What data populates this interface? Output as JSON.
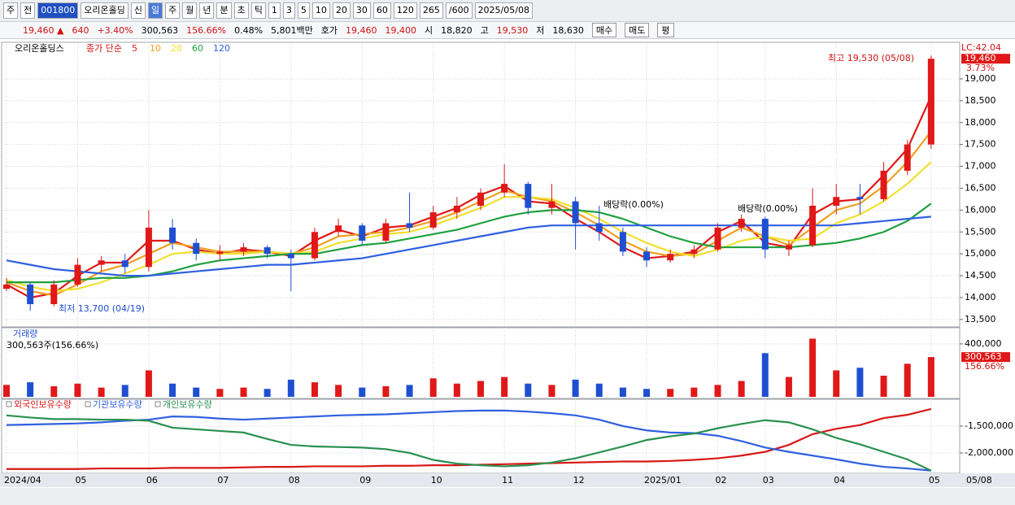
{
  "toolbar": [
    "주",
    "전",
    "001800",
    "오리온홀딩",
    "신",
    "일",
    "주",
    "월",
    "년",
    "분",
    "초",
    "틱",
    "1",
    "3",
    "5",
    "10",
    "20",
    "30",
    "60",
    "120",
    "265",
    "/600",
    "2025/05/08"
  ],
  "info_bar": [
    {
      "text": "19,460 ▲",
      "color": "#d01010"
    },
    {
      "text": "640",
      "color": "#d01010"
    },
    {
      "text": "+3.40%",
      "color": "#d01010"
    },
    {
      "text": "300,563",
      "color": "#000000"
    },
    {
      "text": "156.66%",
      "color": "#d01010"
    },
    {
      "text": "0.48%",
      "color": "#000000"
    },
    {
      "text": "5,801백만",
      "color": "#000000"
    },
    {
      "text": "호가",
      "color": "#000000"
    },
    {
      "text": "19,460",
      "color": "#d01010"
    },
    {
      "text": "19,400",
      "color": "#d01010"
    },
    {
      "text": "시",
      "color": "#000000"
    },
    {
      "text": "18,820",
      "color": "#000000"
    },
    {
      "text": "고",
      "color": "#000000"
    },
    {
      "text": "19,530",
      "color": "#d01010"
    },
    {
      "text": "저",
      "color": "#000000"
    },
    {
      "text": "18,630",
      "color": "#000000"
    },
    {
      "text": "매수",
      "color": "#000000"
    },
    {
      "text": "매도",
      "color": "#000000"
    },
    {
      "text": "평",
      "color": "#000000"
    }
  ],
  "chart_data": [
    {
      "type": "candlestick",
      "title": "오리온홀딩스",
      "subtitle": "종가 단순",
      "categories": [
        "2024/04",
        null,
        null,
        "05",
        null,
        null,
        "06",
        null,
        null,
        "07",
        null,
        null,
        "08",
        null,
        null,
        "09",
        null,
        null,
        "10",
        null,
        null,
        "11",
        null,
        null,
        "12",
        null,
        null,
        "2025/01",
        null,
        null,
        "02",
        null,
        "03",
        null,
        null,
        "04",
        null,
        null,
        null,
        "05"
      ],
      "last_date_label": "05/08",
      "open": [
        14200,
        14300,
        13850,
        14300,
        14750,
        14850,
        14700,
        15600,
        15250,
        15000,
        15050,
        15150,
        15000,
        14900,
        15500,
        15650,
        15300,
        15700,
        15600,
        15950,
        16100,
        16400,
        16600,
        16050,
        16200,
        15700,
        15500,
        15050,
        14850,
        15000,
        15100,
        15600,
        15800,
        15100,
        15200,
        16100,
        16300,
        16250,
        16900,
        17500
      ],
      "high": [
        14450,
        14350,
        14400,
        14900,
        14950,
        15000,
        16000,
        15800,
        15350,
        15200,
        15250,
        15200,
        15100,
        15600,
        15800,
        15700,
        15800,
        16400,
        16100,
        16300,
        16500,
        17050,
        16650,
        16600,
        16300,
        16100,
        15600,
        15150,
        15100,
        15200,
        15700,
        15900,
        15850,
        15300,
        16500,
        16600,
        16600,
        17100,
        17600,
        19530
      ],
      "low": [
        14150,
        13700,
        13800,
        14250,
        14600,
        14550,
        14600,
        15100,
        14850,
        14850,
        14950,
        14900,
        14150,
        14850,
        15400,
        15200,
        15250,
        15500,
        15550,
        15800,
        16000,
        16300,
        15900,
        15900,
        15100,
        15300,
        14950,
        14700,
        14800,
        14900,
        15050,
        15500,
        14900,
        14950,
        15150,
        15900,
        15900,
        16200,
        16800,
        17400
      ],
      "close": [
        14300,
        13850,
        14300,
        14750,
        14850,
        14700,
        15600,
        15250,
        15000,
        15050,
        15150,
        15000,
        14900,
        15500,
        15650,
        15300,
        15700,
        15600,
        15950,
        16100,
        16400,
        16600,
        16050,
        16200,
        15700,
        15500,
        15050,
        14850,
        15000,
        15100,
        15600,
        15800,
        15100,
        15200,
        16100,
        16300,
        16250,
        16900,
        17500,
        19460
      ],
      "up_color": "#e01818",
      "down_color": "#1f4fd1",
      "series": [
        {
          "name": "5",
          "color": "#e01818",
          "values": [
            14300,
            14000,
            14100,
            14500,
            14800,
            14800,
            15300,
            15300,
            15100,
            15000,
            15100,
            15050,
            14950,
            15300,
            15550,
            15400,
            15600,
            15650,
            15850,
            16050,
            16350,
            16550,
            16200,
            16150,
            15800,
            15500,
            15150,
            14900,
            14950,
            15050,
            15500,
            15750,
            15250,
            15150,
            15900,
            16200,
            16250,
            16800,
            17400,
            18600
          ]
        },
        {
          "name": "10",
          "color": "#f0a020",
          "values": [
            14350,
            14150,
            14050,
            14300,
            14600,
            14750,
            15000,
            15250,
            15150,
            15050,
            15050,
            15050,
            15000,
            15150,
            15400,
            15450,
            15500,
            15600,
            15750,
            15950,
            16200,
            16450,
            16300,
            16200,
            15950,
            15650,
            15300,
            15050,
            14950,
            15000,
            15300,
            15600,
            15400,
            15200,
            15600,
            16000,
            16150,
            16550,
            17100,
            17800
          ]
        },
        {
          "name": "20",
          "color": "#f0e030",
          "values": [
            14400,
            14250,
            14150,
            14200,
            14350,
            14550,
            14750,
            15000,
            15050,
            15000,
            15000,
            15050,
            15000,
            15050,
            15250,
            15350,
            15450,
            15500,
            15650,
            15850,
            16050,
            16300,
            16300,
            16250,
            16050,
            15800,
            15500,
            15250,
            15050,
            14950,
            15100,
            15300,
            15400,
            15300,
            15350,
            15700,
            15900,
            16200,
            16600,
            17100
          ]
        },
        {
          "name": "60",
          "color": "#20a040",
          "values": [
            14350,
            14350,
            14350,
            14400,
            14450,
            14450,
            14500,
            14600,
            14750,
            14850,
            14900,
            14950,
            15000,
            15000,
            15100,
            15200,
            15250,
            15350,
            15450,
            15550,
            15700,
            15850,
            15950,
            16000,
            16000,
            15950,
            15800,
            15600,
            15400,
            15250,
            15150,
            15150,
            15150,
            15150,
            15200,
            15250,
            15350,
            15500,
            15750,
            16150
          ]
        },
        {
          "name": "120",
          "color": "#3060e0",
          "values": [
            14850,
            14750,
            14650,
            14600,
            14550,
            14500,
            14500,
            14550,
            14600,
            14650,
            14700,
            14750,
            14750,
            14800,
            14850,
            14900,
            15000,
            15100,
            15200,
            15300,
            15400,
            15500,
            15600,
            15650,
            15650,
            15650,
            15650,
            15650,
            15650,
            15650,
            15650,
            15650,
            15650,
            15650,
            15650,
            15650,
            15700,
            15750,
            15800,
            15850
          ]
        }
      ],
      "ylim": [
        13330,
        19780
      ],
      "yticks": [
        {
          "value": 13500,
          "label": "13,500"
        },
        {
          "value": 14000,
          "label": "14,000"
        },
        {
          "value": 14500,
          "label": "14,500"
        },
        {
          "value": 15000,
          "label": "15,000"
        },
        {
          "value": 15500,
          "label": "15,500"
        },
        {
          "value": 16000,
          "label": "16,000"
        },
        {
          "value": 16500,
          "label": "16,500"
        },
        {
          "value": 17000,
          "label": "17,000"
        },
        {
          "value": 17500,
          "label": "17,500"
        },
        {
          "value": 18000,
          "label": "18,000"
        },
        {
          "value": 18500,
          "label": "18,500"
        },
        {
          "value": 19000,
          "label": "19,000"
        }
      ],
      "grid": true,
      "annotations": [
        "최고 19,530 (05/08)",
        "최저 13,700 (04/19)",
        "배당락(0.00%)",
        "배당락(0.00%)"
      ],
      "price_tag": "19,460",
      "change_tag": "3.73%",
      "lc_label": "LC:42.04"
    },
    {
      "type": "bar",
      "title": "거래량",
      "subtitle": "300,563주(156.66%)",
      "values": [
        90000,
        110000,
        80000,
        100000,
        70000,
        90000,
        200000,
        100000,
        70000,
        60000,
        70000,
        60000,
        130000,
        110000,
        90000,
        70000,
        80000,
        90000,
        140000,
        100000,
        120000,
        150000,
        100000,
        90000,
        130000,
        100000,
        70000,
        60000,
        60000,
        70000,
        90000,
        120000,
        330000,
        150000,
        440000,
        200000,
        220000,
        160000,
        250000,
        300563
      ],
      "ylim": [
        0,
        510000
      ],
      "yticks": [
        {
          "value": 400000,
          "label": "400,000"
        }
      ],
      "value_tag": "300,563",
      "ratio_tag": "156.66%"
    },
    {
      "type": "line",
      "series": [
        {
          "name": "외국인보유수량",
          "color": "#d81818",
          "values": [
            -2300000,
            -2300000,
            -2300000,
            -2300000,
            -2290000,
            -2290000,
            -2290000,
            -2280000,
            -2280000,
            -2280000,
            -2270000,
            -2260000,
            -2260000,
            -2250000,
            -2250000,
            -2250000,
            -2240000,
            -2240000,
            -2230000,
            -2230000,
            -2220000,
            -2210000,
            -2200000,
            -2190000,
            -2180000,
            -2170000,
            -2160000,
            -2160000,
            -2150000,
            -2130000,
            -2100000,
            -2050000,
            -1980000,
            -1850000,
            -1650000,
            -1550000,
            -1480000,
            -1350000,
            -1290000,
            -1180000
          ]
        },
        {
          "name": "기관보유수량",
          "color": "#3060e0",
          "values": [
            -1480000,
            -1470000,
            -1460000,
            -1450000,
            -1430000,
            -1400000,
            -1380000,
            -1320000,
            -1330000,
            -1360000,
            -1380000,
            -1360000,
            -1340000,
            -1320000,
            -1300000,
            -1290000,
            -1280000,
            -1260000,
            -1240000,
            -1220000,
            -1210000,
            -1210000,
            -1230000,
            -1260000,
            -1300000,
            -1380000,
            -1500000,
            -1580000,
            -1620000,
            -1630000,
            -1680000,
            -1780000,
            -1900000,
            -1980000,
            -2050000,
            -2120000,
            -2200000,
            -2260000,
            -2290000,
            -2330000
          ]
        },
        {
          "name": "개인보유수량",
          "color": "#2a9050",
          "values": [
            -1300000,
            -1340000,
            -1370000,
            -1370000,
            -1380000,
            -1380000,
            -1400000,
            -1530000,
            -1560000,
            -1590000,
            -1620000,
            -1740000,
            -1850000,
            -1880000,
            -1890000,
            -1900000,
            -1930000,
            -2000000,
            -2130000,
            -2200000,
            -2230000,
            -2250000,
            -2230000,
            -2180000,
            -2100000,
            -1990000,
            -1880000,
            -1760000,
            -1690000,
            -1640000,
            -1540000,
            -1460000,
            -1390000,
            -1430000,
            -1560000,
            -1720000,
            -1840000,
            -1980000,
            -2120000,
            -2330000
          ]
        }
      ],
      "ylim": [
        -2380000,
        -1015000
      ],
      "yticks": [
        {
          "value": -1500000,
          "label": "-1,500,000"
        },
        {
          "value": -2000000,
          "label": "-2,000,000"
        }
      ]
    }
  ]
}
